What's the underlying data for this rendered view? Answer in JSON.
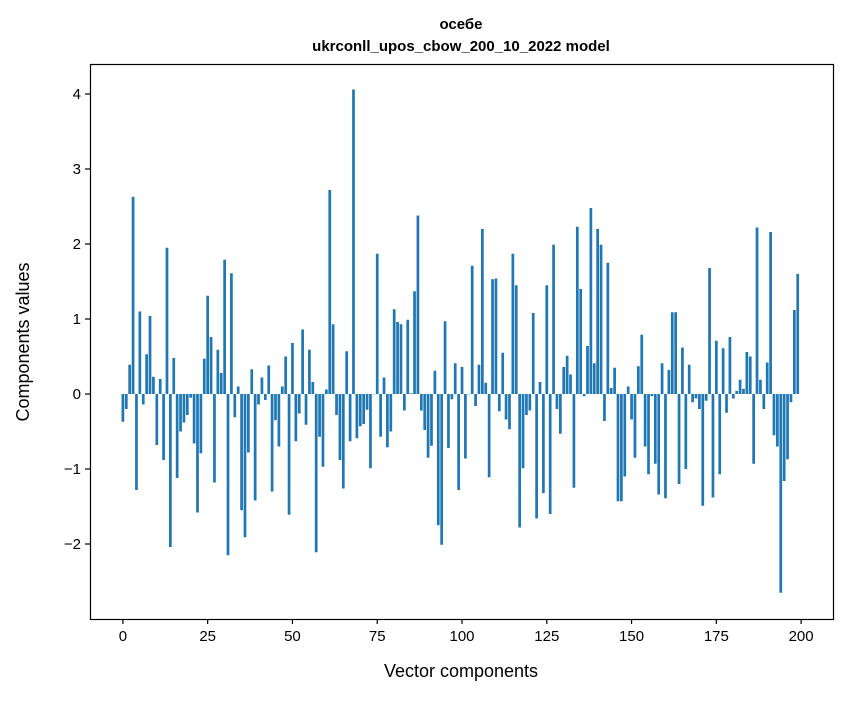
{
  "chart_data": {
    "type": "bar",
    "title_line1": "осебе",
    "title_line2": "ukrconll_upos_cbow_200_10_2022 model",
    "xlabel": "Vector components",
    "ylabel": "Components values",
    "xlim": [
      -9.7,
      209.4
    ],
    "ylim": [
      -3.0,
      4.4
    ],
    "xticks": [
      0,
      25,
      50,
      75,
      100,
      125,
      150,
      175,
      200
    ],
    "yticks": [
      -2,
      -1,
      0,
      1,
      2,
      3,
      4
    ],
    "ytick_labels": [
      "−2",
      "−1",
      "0",
      "1",
      "2",
      "3",
      "4"
    ],
    "bar_color": "#1f77b4",
    "grid": false,
    "values": [
      -0.37,
      -0.2,
      0.39,
      2.63,
      -1.28,
      1.1,
      -0.14,
      0.53,
      1.04,
      0.23,
      -0.68,
      0.2,
      -0.88,
      1.95,
      -2.04,
      0.48,
      -1.12,
      -0.5,
      -0.38,
      -0.28,
      -0.05,
      -0.66,
      -1.58,
      -0.79,
      0.47,
      1.31,
      0.76,
      -1.18,
      0.59,
      0.28,
      1.79,
      -2.15,
      1.61,
      -0.31,
      0.1,
      -1.55,
      -1.91,
      -0.78,
      0.33,
      -1.42,
      -0.14,
      0.22,
      -0.08,
      0.38,
      -1.3,
      -0.35,
      -0.7,
      0.1,
      0.5,
      -1.61,
      0.68,
      -0.63,
      -0.26,
      0.86,
      -0.41,
      0.59,
      0.16,
      -2.11,
      -0.57,
      -0.97,
      0.06,
      2.72,
      0.93,
      -0.28,
      -0.88,
      -1.26,
      0.57,
      -0.63,
      4.06,
      -0.59,
      -0.43,
      -0.4,
      -0.21,
      -0.99,
      0.0,
      1.87,
      -0.57,
      0.22,
      -0.71,
      -0.5,
      1.13,
      0.96,
      0.93,
      -0.22,
      0.99,
      0.01,
      1.37,
      2.38,
      -0.22,
      -0.48,
      -0.85,
      -0.69,
      0.31,
      -1.75,
      -2.01,
      0.97,
      -0.72,
      -0.07,
      0.41,
      -1.28,
      0.36,
      -0.86,
      0.0,
      1.71,
      -0.16,
      0.39,
      2.2,
      0.15,
      -1.11,
      1.53,
      1.54,
      -0.23,
      0.55,
      -0.34,
      -0.47,
      1.87,
      1.45,
      -1.78,
      -0.99,
      -0.28,
      -0.22,
      1.08,
      -1.66,
      0.16,
      -1.32,
      1.45,
      -1.6,
      1.99,
      -0.2,
      -0.53,
      0.36,
      0.51,
      0.26,
      -1.25,
      2.23,
      1.4,
      -0.03,
      0.64,
      2.48,
      0.41,
      2.2,
      1.99,
      -0.36,
      1.75,
      0.08,
      0.35,
      -1.43,
      -1.43,
      -1.1,
      0.1,
      -0.34,
      -0.85,
      0.37,
      0.79,
      -0.7,
      -1.07,
      -0.03,
      -0.93,
      -1.34,
      0.41,
      -1.39,
      0.32,
      1.09,
      1.09,
      -1.2,
      0.62,
      -1.0,
      0.39,
      -0.11,
      -0.06,
      -0.2,
      -1.49,
      -0.09,
      1.68,
      -1.38,
      0.71,
      -1.07,
      0.61,
      -0.25,
      0.76,
      -0.06,
      0.04,
      0.19,
      0.07,
      0.56,
      0.5,
      -0.93,
      2.22,
      0.19,
      -0.2,
      0.42,
      2.16,
      -0.55,
      -0.7,
      -2.65,
      -1.16,
      -0.87,
      -0.11,
      1.12,
      1.6
    ]
  }
}
